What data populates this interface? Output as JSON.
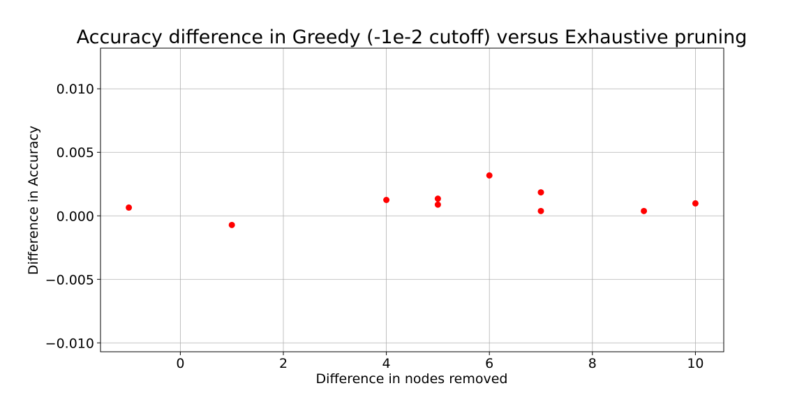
{
  "chart_data": {
    "type": "scatter",
    "title": "Accuracy difference in Greedy (-1e-2 cutoff) versus Exhaustive pruning",
    "xlabel": "Difference in nodes removed",
    "ylabel": "Difference in Accuracy",
    "xlim": [
      -1.55,
      10.55
    ],
    "ylim": [
      -0.0107,
      0.0132
    ],
    "xticks": [
      0,
      2,
      4,
      6,
      8,
      10
    ],
    "xtick_labels": [
      "0",
      "2",
      "4",
      "6",
      "8",
      "10"
    ],
    "yticks": [
      -0.01,
      -0.005,
      0.0,
      0.005,
      0.01
    ],
    "ytick_labels": [
      "−0.010",
      "−0.005",
      "0.000",
      "0.005",
      "0.010"
    ],
    "grid": true,
    "marker_color": "#ff0000",
    "points": [
      {
        "x": -1,
        "y": 0.00065
      },
      {
        "x": 1,
        "y": -0.00072
      },
      {
        "x": 4,
        "y": 0.00125
      },
      {
        "x": 5,
        "y": 0.00135
      },
      {
        "x": 5,
        "y": 0.00088
      },
      {
        "x": 6,
        "y": 0.00318
      },
      {
        "x": 7,
        "y": 0.00185
      },
      {
        "x": 7,
        "y": 0.00038
      },
      {
        "x": 9,
        "y": 0.00038
      },
      {
        "x": 10,
        "y": 0.00098
      }
    ]
  }
}
